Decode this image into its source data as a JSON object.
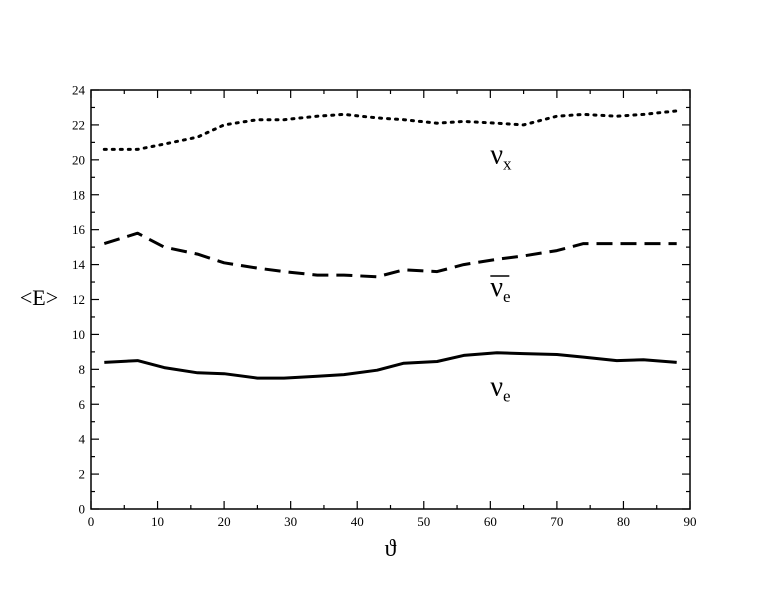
{
  "chart_data": {
    "type": "line",
    "xlabel": "ϑ",
    "ylabel": "<E>",
    "xlim": [
      0,
      90
    ],
    "ylim": [
      0,
      24
    ],
    "xticks": [
      0,
      10,
      20,
      30,
      40,
      50,
      60,
      70,
      80,
      90
    ],
    "yticks": [
      0,
      2,
      4,
      6,
      8,
      10,
      12,
      14,
      16,
      18,
      20,
      22,
      24
    ],
    "grid": false,
    "series": [
      {
        "name": "νx",
        "style": "dotted",
        "color": "#000000",
        "x": [
          2,
          7,
          11,
          16,
          20,
          25,
          29,
          34,
          38,
          43,
          47,
          52,
          56,
          61,
          65,
          70,
          74,
          79,
          83,
          88
        ],
        "y": [
          20.6,
          20.6,
          20.9,
          21.3,
          22.0,
          22.3,
          22.3,
          22.5,
          22.6,
          22.4,
          22.3,
          22.1,
          22.2,
          22.1,
          22.0,
          22.5,
          22.6,
          22.5,
          22.6,
          22.8
        ]
      },
      {
        "name": "ν̄e",
        "style": "dashed",
        "color": "#000000",
        "x": [
          2,
          7,
          11,
          16,
          20,
          25,
          29,
          34,
          38,
          43,
          47,
          52,
          56,
          61,
          65,
          70,
          74,
          79,
          83,
          88
        ],
        "y": [
          15.2,
          15.8,
          15.0,
          14.6,
          14.1,
          13.8,
          13.6,
          13.4,
          13.4,
          13.3,
          13.7,
          13.6,
          14.0,
          14.3,
          14.5,
          14.8,
          15.2,
          15.2,
          15.2,
          15.2
        ]
      },
      {
        "name": "νe",
        "style": "solid",
        "color": "#000000",
        "x": [
          2,
          7,
          11,
          16,
          20,
          25,
          29,
          34,
          38,
          43,
          47,
          52,
          56,
          61,
          65,
          70,
          74,
          79,
          83,
          88
        ],
        "y": [
          8.4,
          8.5,
          8.1,
          7.8,
          7.75,
          7.5,
          7.5,
          7.6,
          7.7,
          7.95,
          8.35,
          8.45,
          8.8,
          8.95,
          8.9,
          8.85,
          8.7,
          8.5,
          8.55,
          8.4
        ]
      }
    ],
    "series_labels": [
      {
        "base": "ν",
        "sub": "x",
        "bar": false,
        "at_x": 60,
        "at_y": 19.8
      },
      {
        "base": "ν",
        "sub": "e",
        "bar": true,
        "at_x": 60,
        "at_y": 12.2
      },
      {
        "base": "ν",
        "sub": "e",
        "bar": false,
        "at_x": 60,
        "at_y": 6.5
      }
    ]
  }
}
